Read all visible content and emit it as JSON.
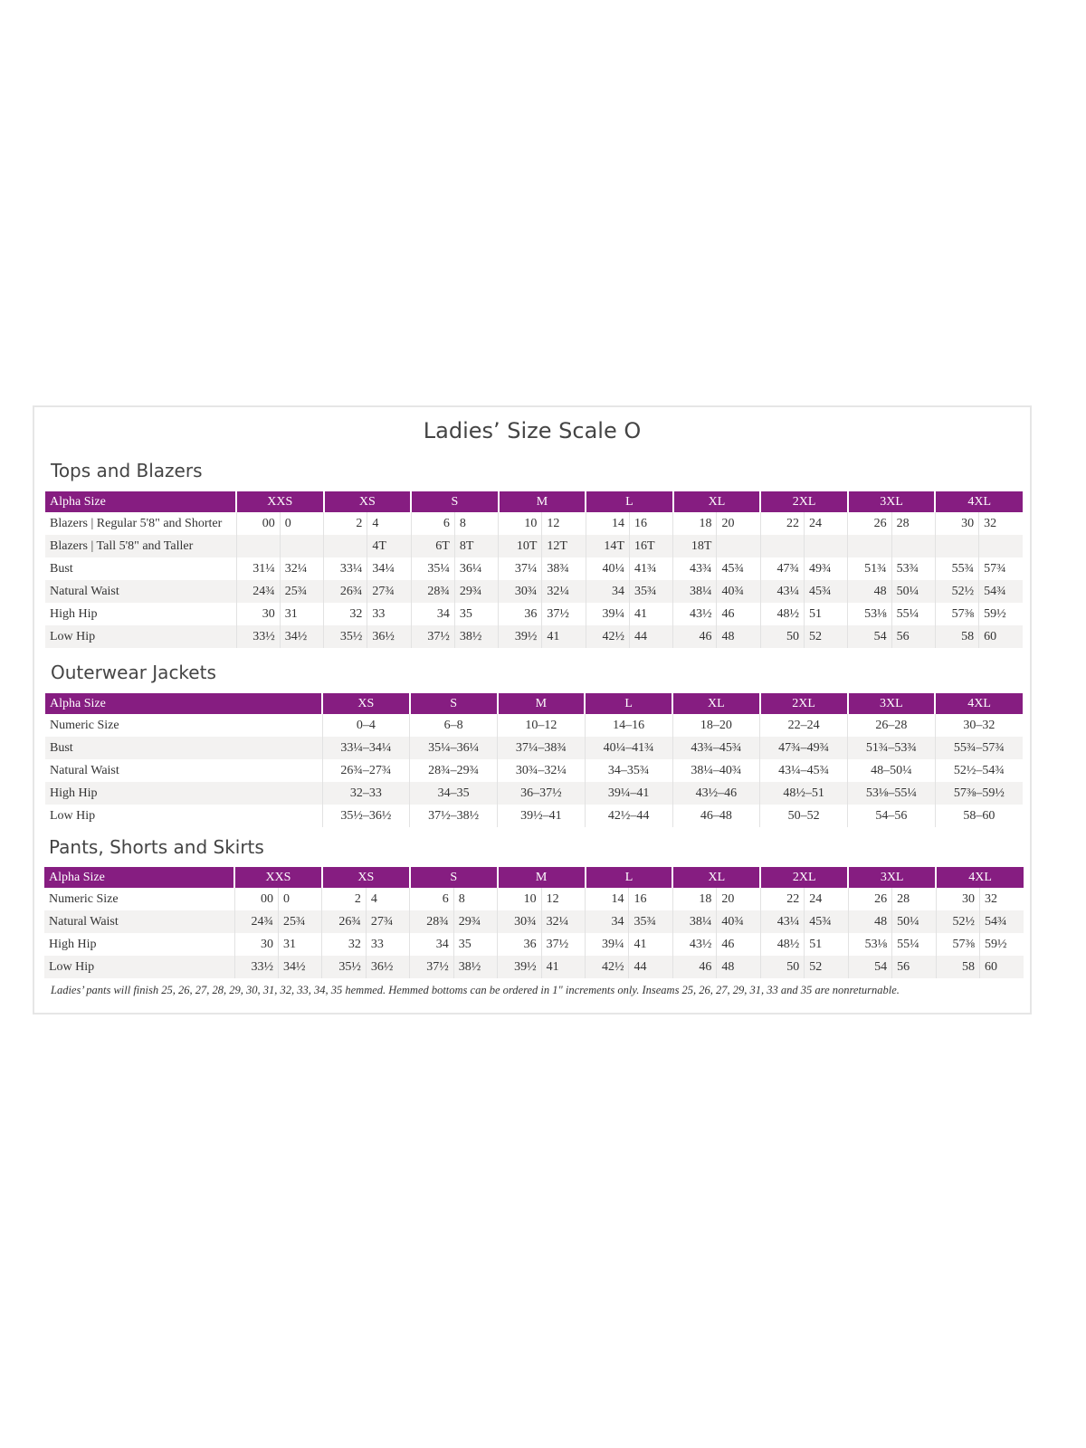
{
  "title": "Ladies’ Size Scale O",
  "colors": {
    "header": "#861d81",
    "alt_row": "#f3f2f1"
  },
  "tops": {
    "heading": "Tops and Blazers",
    "header_label": "Alpha Size",
    "sizes": [
      "XXS",
      "XS",
      "S",
      "M",
      "L",
      "XL",
      "2XL",
      "3XL",
      "4XL"
    ],
    "rows": [
      {
        "label": "Blazers | Regular 5'8\" and Shorter",
        "values": [
          "00",
          "0",
          "2",
          "4",
          "6",
          "8",
          "10",
          "12",
          "14",
          "16",
          "18",
          "20",
          "22",
          "24",
          "26",
          "28",
          "30",
          "32"
        ]
      },
      {
        "label": "Blazers | Tall 5'8\" and Taller",
        "values": [
          "",
          "",
          "",
          "4T",
          "6T",
          "8T",
          "10T",
          "12T",
          "14T",
          "16T",
          "18T",
          "",
          "",
          "",
          "",
          "",
          "",
          ""
        ]
      },
      {
        "label": "Bust",
        "values": [
          "31¼",
          "32¼",
          "33¼",
          "34¼",
          "35¼",
          "36¼",
          "37¼",
          "38¾",
          "40¼",
          "41¾",
          "43¾",
          "45¾",
          "47¾",
          "49¾",
          "51¾",
          "53¾",
          "55¾",
          "57¾"
        ]
      },
      {
        "label": "Natural Waist",
        "values": [
          "24¾",
          "25¾",
          "26¾",
          "27¾",
          "28¾",
          "29¾",
          "30¾",
          "32¼",
          "34",
          "35¾",
          "38¼",
          "40¾",
          "43¼",
          "45¾",
          "48",
          "50¼",
          "52½",
          "54¾"
        ]
      },
      {
        "label": "High Hip",
        "values": [
          "30",
          "31",
          "32",
          "33",
          "34",
          "35",
          "36",
          "37½",
          "39¼",
          "41",
          "43½",
          "46",
          "48½",
          "51",
          "53⅛",
          "55¼",
          "57⅜",
          "59½"
        ]
      },
      {
        "label": "Low Hip",
        "values": [
          "33½",
          "34½",
          "35½",
          "36½",
          "37½",
          "38½",
          "39½",
          "41",
          "42½",
          "44",
          "46",
          "48",
          "50",
          "52",
          "54",
          "56",
          "58",
          "60"
        ]
      }
    ]
  },
  "outerwear": {
    "heading": "Outerwear Jackets",
    "header_label": "Alpha Size",
    "sizes": [
      "XS",
      "S",
      "M",
      "L",
      "XL",
      "2XL",
      "3XL",
      "4XL"
    ],
    "rows": [
      {
        "label": "Numeric Size",
        "values": [
          "0–4",
          "6–8",
          "10–12",
          "14–16",
          "18–20",
          "22–24",
          "26–28",
          "30–32"
        ]
      },
      {
        "label": "Bust",
        "values": [
          "33¼–34¼",
          "35¼–36¼",
          "37¼–38¾",
          "40¼–41¾",
          "43¾–45¾",
          "47¾–49¾",
          "51¾–53¾",
          "55¾–57¾"
        ]
      },
      {
        "label": "Natural Waist",
        "values": [
          "26¾–27¾",
          "28¾–29¾",
          "30¾–32¼",
          "34–35¾",
          "38¼–40¾",
          "43¼–45¾",
          "48–50¼",
          "52½–54¾"
        ]
      },
      {
        "label": "High Hip",
        "values": [
          "32–33",
          "34–35",
          "36–37½",
          "39¼–41",
          "43½–46",
          "48½–51",
          "53⅛–55¼",
          "57⅜–59½"
        ]
      },
      {
        "label": "Low Hip",
        "values": [
          "35½–36½",
          "37½–38½",
          "39½–41",
          "42½–44",
          "46–48",
          "50–52",
          "54–56",
          "58–60"
        ]
      }
    ]
  },
  "pants": {
    "heading": "Pants, Shorts and Skirts",
    "header_label": "Alpha Size",
    "sizes": [
      "XXS",
      "XS",
      "S",
      "M",
      "L",
      "XL",
      "2XL",
      "3XL",
      "4XL"
    ],
    "rows": [
      {
        "label": "Numeric Size",
        "values": [
          "00",
          "0",
          "2",
          "4",
          "6",
          "8",
          "10",
          "12",
          "14",
          "16",
          "18",
          "20",
          "22",
          "24",
          "26",
          "28",
          "30",
          "32"
        ]
      },
      {
        "label": "Natural Waist",
        "values": [
          "24¾",
          "25¾",
          "26¾",
          "27¾",
          "28¾",
          "29¾",
          "30¾",
          "32¼",
          "34",
          "35¾",
          "38¼",
          "40¾",
          "43¼",
          "45¾",
          "48",
          "50¼",
          "52½",
          "54¾"
        ]
      },
      {
        "label": "High Hip",
        "values": [
          "30",
          "31",
          "32",
          "33",
          "34",
          "35",
          "36",
          "37½",
          "39¼",
          "41",
          "43½",
          "46",
          "48½",
          "51",
          "53⅛",
          "55¼",
          "57⅜",
          "59½"
        ]
      },
      {
        "label": "Low Hip",
        "values": [
          "33½",
          "34½",
          "35½",
          "36½",
          "37½",
          "38½",
          "39½",
          "41",
          "42½",
          "44",
          "46",
          "48",
          "50",
          "52",
          "54",
          "56",
          "58",
          "60"
        ]
      }
    ],
    "note": "Ladies’ pants will finish 25, 26, 27, 28, 29, 30, 31, 32, 33, 34, 35 hemmed. Hemmed bottoms can be ordered in 1\" increments only. Inseams 25, 26, 27, 29, 31, 33 and 35 are nonreturnable."
  }
}
